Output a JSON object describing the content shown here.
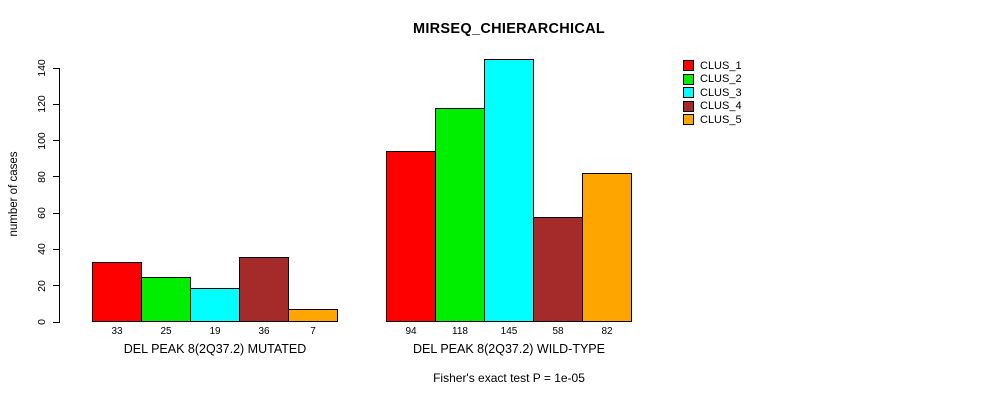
{
  "chart_data": {
    "type": "bar",
    "title": "MIRSEQ_CHIERARCHICAL",
    "ylabel": "number of cases",
    "xlabel": "",
    "ylim": [
      0,
      145
    ],
    "yticks": [
      0,
      20,
      40,
      60,
      80,
      100,
      120,
      140
    ],
    "grid": false,
    "legend_position": "top-right",
    "bar_value_labels": true,
    "categories": [
      "DEL PEAK  8(2Q37.2) MUTATED",
      "DEL PEAK  8(2Q37.2) WILD-TYPE"
    ],
    "series": [
      {
        "name": "CLUS_1",
        "color": "#FF0000",
        "values": [
          33,
          94
        ]
      },
      {
        "name": "CLUS_2",
        "color": "#00EE00",
        "values": [
          25,
          118
        ]
      },
      {
        "name": "CLUS_3",
        "color": "#00FFFF",
        "values": [
          19,
          145
        ]
      },
      {
        "name": "CLUS_4",
        "color": "#A52A2A",
        "values": [
          36,
          58
        ]
      },
      {
        "name": "CLUS_5",
        "color": "#FFA500",
        "values": [
          7,
          82
        ]
      }
    ],
    "footnote": "Fisher's exact test P = 1e-05"
  }
}
